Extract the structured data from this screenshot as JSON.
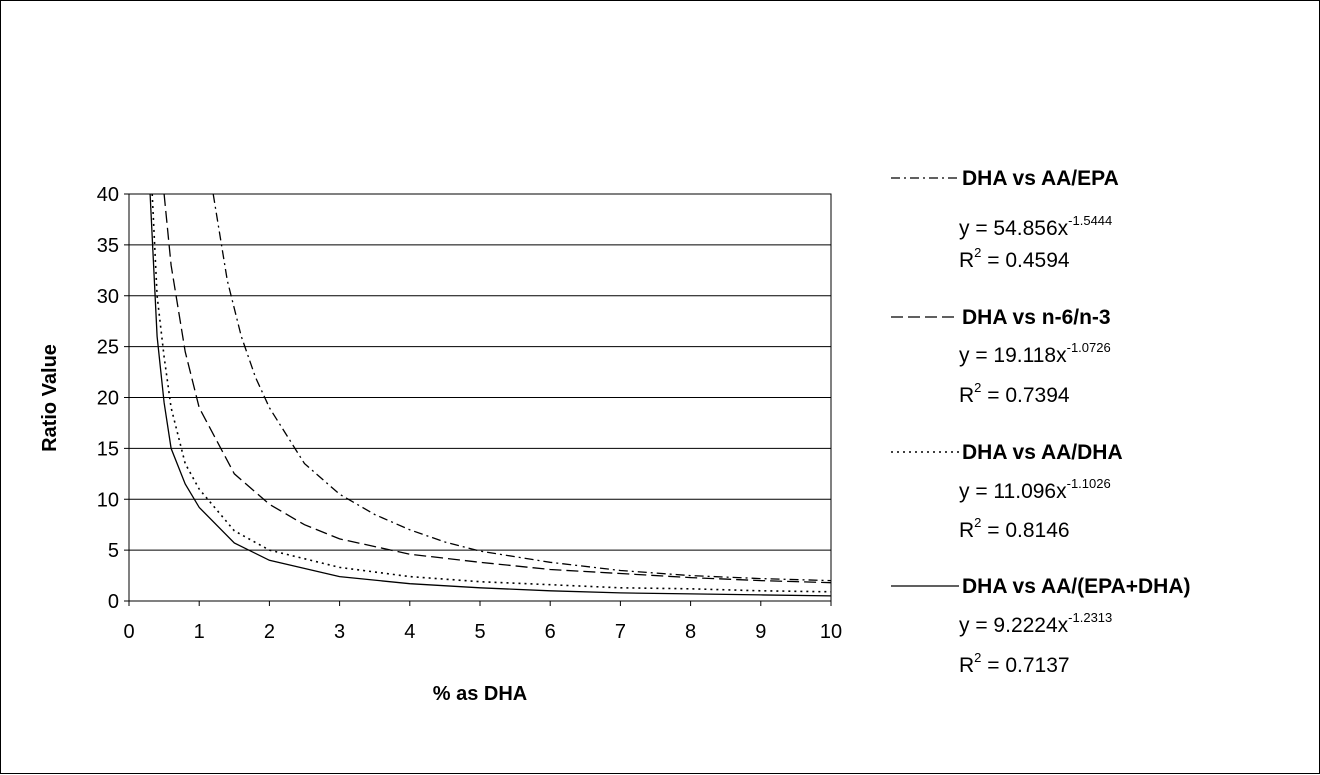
{
  "chart_data": {
    "type": "line",
    "title": "",
    "xlabel": "% as DHA",
    "ylabel": "Ratio Value",
    "xlim": [
      0,
      10
    ],
    "ylim": [
      0,
      40
    ],
    "x_ticks": [
      0,
      1,
      2,
      3,
      4,
      5,
      6,
      7,
      8,
      9,
      10
    ],
    "y_ticks": [
      0,
      5,
      10,
      15,
      20,
      25,
      30,
      35,
      40
    ],
    "grid": "horizontal",
    "legend_position": "right",
    "series": [
      {
        "name": "DHA vs AA/EPA",
        "dash": "dash-dot",
        "equation_prefix": "y = 54.856x",
        "equation_exp": "-1.5444",
        "r2_prefix": "R",
        "r2_sup": "2",
        "r2_value": " = 0.4594",
        "coef": 54.856,
        "exp": -1.5444,
        "x": [
          1.2,
          1.4,
          1.6,
          1.8,
          2.0,
          2.5,
          3.0,
          3.5,
          4.0,
          4.5,
          5.0,
          6.0,
          7.0,
          8.0,
          9.0,
          10.0
        ],
        "y": [
          40,
          31.5,
          26.0,
          22.0,
          19.0,
          13.5,
          10.5,
          8.5,
          7.0,
          5.8,
          4.9,
          3.8,
          3.0,
          2.5,
          2.2,
          2.0
        ]
      },
      {
        "name": "DHA vs n-6/n-3",
        "dash": "dash",
        "equation_prefix": "y = 19.118x",
        "equation_exp": "-1.0726",
        "r2_prefix": "R",
        "r2_sup": "2",
        "r2_value": " = 0.7394",
        "coef": 19.118,
        "exp": -1.0726,
        "x": [
          0.5,
          0.6,
          0.8,
          1.0,
          1.5,
          2.0,
          2.5,
          3.0,
          4.0,
          5.0,
          6.0,
          7.0,
          8.0,
          9.0,
          10.0
        ],
        "y": [
          40,
          33.0,
          24.5,
          19.0,
          12.5,
          9.5,
          7.5,
          6.1,
          4.6,
          3.8,
          3.1,
          2.7,
          2.3,
          2.0,
          1.8
        ]
      },
      {
        "name": "DHA vs AA/DHA",
        "dash": "dot",
        "equation_prefix": "y = 11.096x",
        "equation_exp": "-1.1026",
        "r2_prefix": "R",
        "r2_sup": "2",
        "r2_value": " = 0.8146",
        "coef": 11.096,
        "exp": -1.1026,
        "x": [
          0.33,
          0.4,
          0.5,
          0.6,
          0.8,
          1.0,
          1.5,
          2.0,
          3.0,
          4.0,
          5.0,
          6.0,
          7.0,
          8.0,
          9.0,
          10.0
        ],
        "y": [
          40,
          30.0,
          24.0,
          19.0,
          13.5,
          11.0,
          6.9,
          5.0,
          3.3,
          2.4,
          1.9,
          1.6,
          1.3,
          1.2,
          1.0,
          0.9
        ]
      },
      {
        "name": "DHA vs AA/(EPA+DHA)",
        "dash": "solid",
        "equation_prefix": "y = 9.2224x",
        "equation_exp": "-1.2313",
        "r2_prefix": "R",
        "r2_sup": "2",
        "r2_value": " = 0.7137",
        "coef": 9.2224,
        "exp": -1.2313,
        "x": [
          0.3,
          0.4,
          0.5,
          0.6,
          0.8,
          1.0,
          1.5,
          2.0,
          3.0,
          4.0,
          5.0,
          6.0,
          7.0,
          8.0,
          9.0,
          10.0
        ],
        "y": [
          40,
          26.0,
          19.5,
          15.0,
          11.5,
          9.2,
          5.7,
          4.0,
          2.4,
          1.7,
          1.3,
          1.0,
          0.8,
          0.7,
          0.6,
          0.5
        ]
      }
    ]
  }
}
